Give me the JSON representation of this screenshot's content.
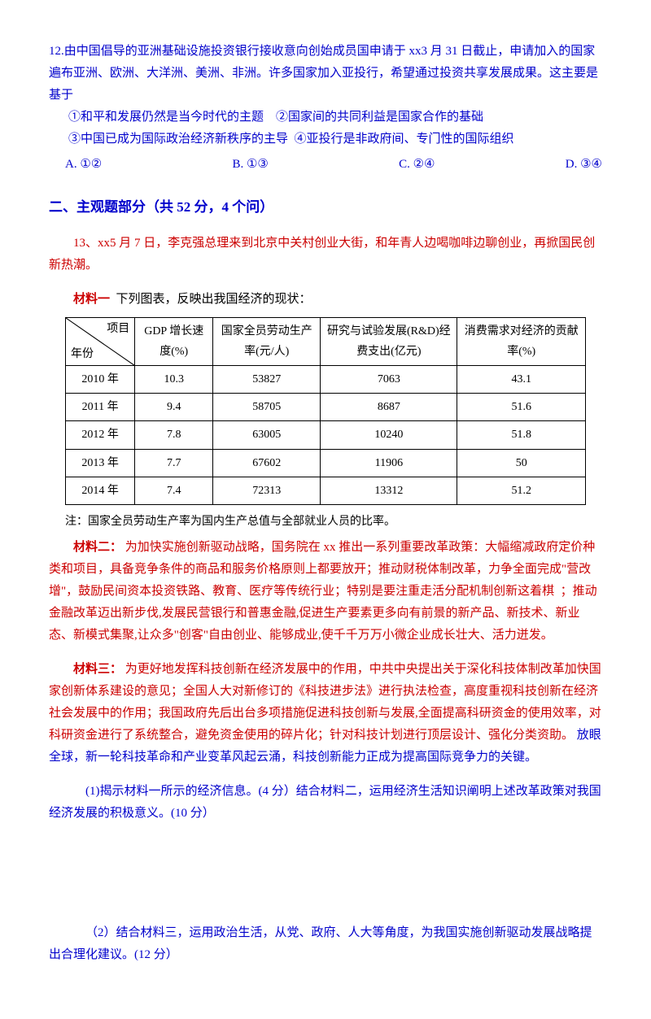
{
  "q12": {
    "prompt": "12.由中国倡导的亚洲基础设施投资银行接收意向创始成员国申请于 xx3 月 31 日截止，申请加入的国家遍布亚洲、欧洲、大洋洲、美洲、非洲。许多国家加入亚投行，希望通过投资共享发展成果。这主要是基于",
    "line1": "①和平和发展仍然是当今时代的主题    ②国家间的共同利益是国家合作的基础",
    "line2": "③中国已成为国际政治经济新秩序的主导  ④亚投行是非政府间、专门性的国际组织",
    "optA": "A. ①②",
    "optB": "B. ①③",
    "optC": "C. ②④",
    "optD": "D. ③④"
  },
  "section2_title": "二、主观题部分（共 52 分，4 个问）",
  "q13_intro": "13、xx5 月 7 日，李克强总理来到北京中关村创业大街，和年青人边喝咖啡边聊创业，再掀国民创新热潮。",
  "material1_label": "材料一",
  "material1_desc": "  下列图表，反映出我国经济的现状：",
  "table": {
    "diag_top": "项目",
    "diag_bottom": "年份",
    "headers": [
      "GDP 增长速度(%)",
      "国家全员劳动生产率(元/人)",
      "研究与试验发展(R&D)经费支出(亿元)",
      "消费需求对经济的贡献率(%)"
    ],
    "col_widths": [
      "90px",
      "90px",
      "130px",
      "170px",
      "160px"
    ],
    "rows": [
      [
        "2010 年",
        "10.3",
        "53827",
        "7063",
        "43.1"
      ],
      [
        "2011 年",
        "9.4",
        "58705",
        "8687",
        "51.6"
      ],
      [
        "2012 年",
        "7.8",
        "63005",
        "10240",
        "51.8"
      ],
      [
        "2013 年",
        "7.7",
        "67602",
        "11906",
        "50"
      ],
      [
        "2014 年",
        "7.4",
        "72313",
        "13312",
        "51.2"
      ]
    ],
    "note": "注：国家全员劳动生产率为国内生产总值与全部就业人员的比率。",
    "border_color": "#000000"
  },
  "material2_label": "材料二：",
  "material2_text": "为加快实施创新驱动战略，国务院在 xx 推出一系列重要改革政策：大幅缩减政府定价种类和项目，具备竞争条件的商品和服务价格原则上都要放开；推动财税体制改革，力争全面完成\"营改增\"，鼓励民间资本投资铁路、教育、医疗等传统行业；特别是要注重走活分配机制创新这着棋  ；推动金融改革迈出新步伐,发展民营银行和普惠金融,促进生产要素更多向有前景的新产品、新技术、新业态、新模式集聚,让众多\"创客\"自由创业、能够成业,使千千万万小微企业成长壮大、活力迸发。",
  "material3_label": "材料三：",
  "material3_text1": "为更好地发挥科技创新在经济发展中的作用，中共中央提出关于深化科技体制改革加快国家创新体系建设的意见；全国人大对新修订的《科技进步法》进行执法检查，高度重视科技创新在经济社会发展中的作用；我国政府先后出台多项措施促进科技创新与发展,全面提高科研资金的使用效率，对科研资金进行了系统整合，避免资金使用的碎片化；针对科技计划进行顶层设计、强化分类资助。",
  "material3_text2": "放眼全球，新一轮科技革命和产业变革风起云涌，科技创新能力正成为提高国际竞争力的关键。",
  "question1": "(1)揭示材料一所示的经济信息。(4 分）结合材料二，运用经济生活知识阐明上述改革政策对我国经济发展的积极意义。(10 分）",
  "question2": "（2）结合材料三，运用政治生活，从党、政府、人大等角度，为我国实施创新驱动发展战略提出合理化建议。(12 分）"
}
